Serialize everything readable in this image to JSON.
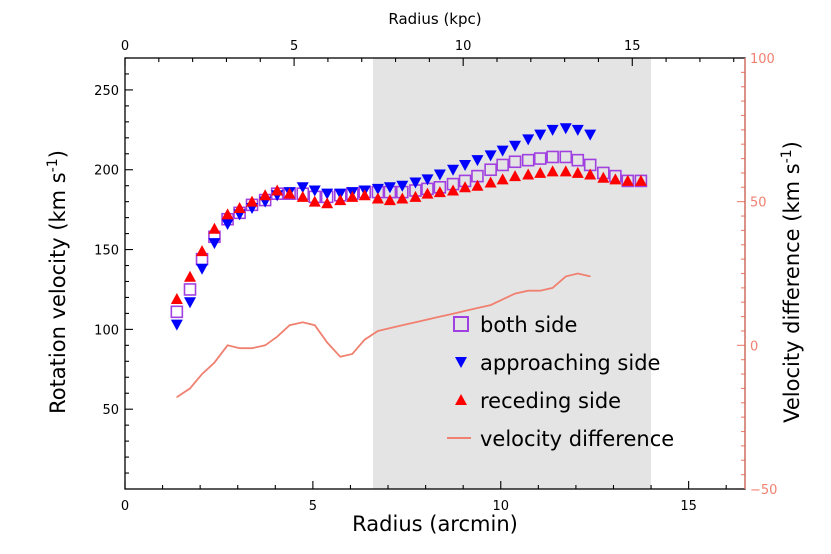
{
  "chart_data": {
    "type": "scatter",
    "title": "",
    "xlabel": "Radius (arcmin)",
    "ylabel": "Rotation velocity (km s^-1)",
    "ylabel_right": "Velocity difference (km s^-1)",
    "xlabel_top": "Radius (kpc)",
    "xlim": [
      0,
      16.5
    ],
    "ylim": [
      0,
      270
    ],
    "ylim_right": [
      -50,
      100
    ],
    "xlim_top": [
      0,
      16.5
    ],
    "shaded_region": [
      6.6,
      14.0
    ],
    "colors": {
      "both": "#a040e0",
      "approaching": "#0000ff",
      "receding": "#ff0000",
      "difference": "#f08070",
      "shade": "#e4e4e4"
    },
    "x_ticks": [
      {
        "value": 0,
        "label": "0"
      },
      {
        "value": 5,
        "label": "5"
      },
      {
        "value": 10,
        "label": "10"
      },
      {
        "value": 15,
        "label": "15"
      }
    ],
    "x_top_ticks": [
      {
        "value": 0,
        "label": "0"
      },
      {
        "value": 4.5,
        "label": "5"
      },
      {
        "value": 9,
        "label": "10"
      },
      {
        "value": 13.5,
        "label": "15"
      }
    ],
    "y_ticks": [
      {
        "value": 50,
        "label": "50"
      },
      {
        "value": 100,
        "label": "100"
      },
      {
        "value": 150,
        "label": "150"
      },
      {
        "value": 200,
        "label": "200"
      },
      {
        "value": 250,
        "label": "250"
      }
    ],
    "y_right_ticks": [
      {
        "value": -50,
        "label": "−50"
      },
      {
        "value": 0,
        "label": "0"
      },
      {
        "value": 50,
        "label": "50"
      },
      {
        "value": 100,
        "label": "100"
      }
    ],
    "legend": [
      {
        "key": "both",
        "label": "both side"
      },
      {
        "key": "approaching",
        "label": "approaching side"
      },
      {
        "key": "receding",
        "label": "receding side"
      },
      {
        "key": "difference",
        "label": "velocity difference"
      }
    ],
    "series": [
      {
        "name": "both side",
        "marker": "square-open",
        "x": [
          1.38,
          1.73,
          2.05,
          2.38,
          2.73,
          3.05,
          3.38,
          3.73,
          4.05,
          4.38,
          4.73,
          5.05,
          5.38,
          5.73,
          6.05,
          6.38,
          6.73,
          7.05,
          7.38,
          7.73,
          8.05,
          8.38,
          8.73,
          9.05,
          9.38,
          9.73,
          10.05,
          10.38,
          10.73,
          11.05,
          11.38,
          11.73,
          12.05,
          12.38,
          12.73,
          13.05,
          13.38,
          13.73
        ],
        "y": [
          111,
          125,
          144,
          158,
          169,
          173,
          178,
          181,
          185,
          185,
          185,
          183,
          183,
          184,
          185,
          186,
          186,
          186,
          186,
          187,
          188,
          189,
          191,
          193,
          196,
          200,
          203,
          205,
          206,
          207,
          208,
          208,
          206,
          203,
          198,
          196,
          193,
          193
        ]
      },
      {
        "name": "approaching side",
        "marker": "triangle-down",
        "x": [
          1.38,
          1.73,
          2.05,
          2.38,
          2.73,
          3.05,
          3.38,
          3.73,
          4.05,
          4.38,
          4.73,
          5.05,
          5.38,
          5.73,
          6.05,
          6.38,
          6.73,
          7.05,
          7.38,
          7.73,
          8.05,
          8.38,
          8.73,
          9.05,
          9.38,
          9.73,
          10.05,
          10.38,
          10.73,
          11.05,
          11.38,
          11.73,
          12.05,
          12.38
        ],
        "y": [
          103,
          117,
          138,
          154,
          166,
          172,
          176,
          180,
          184,
          186,
          189,
          187,
          185,
          185,
          186,
          187,
          188,
          189,
          190,
          192,
          194,
          197,
          200,
          203,
          206,
          209,
          212,
          215,
          219,
          222,
          225,
          226,
          225,
          222
        ]
      },
      {
        "name": "receding side",
        "marker": "triangle-up",
        "x": [
          1.38,
          1.73,
          2.05,
          2.38,
          2.73,
          3.05,
          3.38,
          3.73,
          4.05,
          4.38,
          4.73,
          5.05,
          5.38,
          5.73,
          6.05,
          6.38,
          6.73,
          7.05,
          7.38,
          7.73,
          8.05,
          8.38,
          8.73,
          9.05,
          9.38,
          9.73,
          10.05,
          10.38,
          10.73,
          11.05,
          11.38,
          11.73,
          12.05,
          12.38,
          12.73,
          13.05,
          13.38,
          13.73
        ],
        "y": [
          119,
          133,
          149,
          163,
          172,
          176,
          180,
          184,
          187,
          185,
          183,
          180,
          179,
          181,
          183,
          184,
          182,
          181,
          182,
          183,
          185,
          186,
          187,
          189,
          190,
          192,
          194,
          196,
          197,
          198,
          199,
          199,
          198,
          197,
          195,
          194,
          193,
          193
        ]
      },
      {
        "name": "velocity difference",
        "marker": "line",
        "axis": "right",
        "x": [
          1.38,
          1.73,
          2.05,
          2.38,
          2.73,
          3.05,
          3.38,
          3.73,
          4.05,
          4.38,
          4.73,
          5.05,
          5.38,
          5.73,
          6.05,
          6.38,
          6.73,
          7.05,
          7.38,
          7.73,
          8.05,
          8.38,
          8.73,
          9.05,
          9.38,
          9.73,
          10.05,
          10.38,
          10.73,
          11.05,
          11.38,
          11.73,
          12.05,
          12.38
        ],
        "y": [
          -18,
          -15,
          -10,
          -6,
          0,
          -1,
          -1,
          0,
          3,
          7,
          8,
          7,
          1,
          -4,
          -3,
          2,
          5,
          6,
          7,
          8,
          9,
          10,
          11,
          12,
          13,
          14,
          16,
          18,
          19,
          19,
          20,
          24,
          25,
          24
        ]
      }
    ]
  }
}
